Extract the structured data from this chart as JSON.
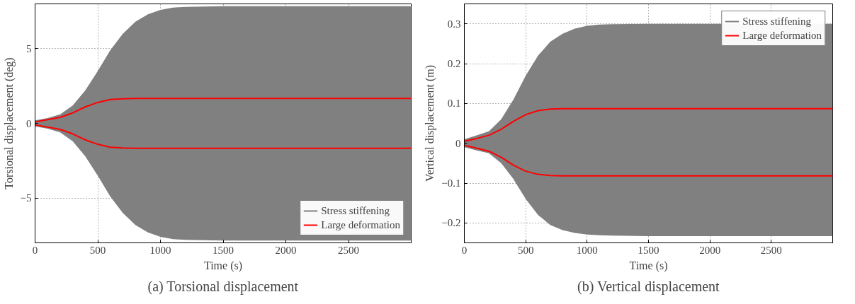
{
  "chart_data": [
    {
      "type": "line",
      "xlabel": "Time (s)",
      "ylabel": "Torsional displacement (deg)",
      "annotations": [
        "(a) Torsional displacement"
      ],
      "xlim": [
        0,
        3000
      ],
      "xticks": [
        0,
        500,
        1000,
        1500,
        2000,
        2500
      ],
      "ylim": [
        -8,
        8
      ],
      "yticks": [
        -5,
        0,
        5
      ],
      "grid": true,
      "legend": "bottom right",
      "x": [
        0,
        100,
        200,
        300,
        400,
        500,
        600,
        700,
        800,
        900,
        1000,
        1100,
        1200,
        1500,
        2000,
        2500,
        3000
      ],
      "series": [
        {
          "name": "Stress stiffening",
          "color": "#808080",
          "values": [
            null,
            null,
            null,
            null,
            null,
            null,
            null,
            null,
            null,
            null,
            null,
            null,
            null,
            null,
            null,
            null,
            null
          ],
          "upper": [
            0.2,
            0.35,
            0.6,
            1.2,
            2.2,
            3.5,
            4.9,
            6.0,
            6.8,
            7.3,
            7.6,
            7.75,
            7.8,
            7.85,
            7.85,
            7.85,
            7.85
          ],
          "lower": [
            -0.2,
            -0.35,
            -0.6,
            -1.2,
            -2.2,
            -3.5,
            -4.9,
            -6.0,
            -6.8,
            -7.3,
            -7.6,
            -7.75,
            -7.8,
            -7.85,
            -7.85,
            -7.85,
            -7.85
          ]
        },
        {
          "name": "Large deformation",
          "color": "#ff0000",
          "values": [
            0.1,
            0.25,
            0.4,
            0.7,
            1.1,
            1.4,
            1.6,
            1.65,
            1.67,
            1.67,
            1.67,
            1.67,
            1.67,
            1.67,
            1.67,
            1.67,
            1.67
          ]
        },
        {
          "color": "#ff0000",
          "values": [
            -0.1,
            -0.25,
            -0.4,
            -0.7,
            -1.1,
            -1.4,
            -1.6,
            -1.65,
            -1.67,
            -1.67,
            -1.67,
            -1.67,
            -1.67,
            -1.67,
            -1.67,
            -1.67,
            -1.67
          ]
        }
      ]
    },
    {
      "type": "line",
      "xlabel": "Time (s)",
      "ylabel": "Vertical displacement (m)",
      "annotations": [
        "(b) Vertical displacement"
      ],
      "xlim": [
        0,
        3000
      ],
      "xticks": [
        0,
        500,
        1000,
        1500,
        2000,
        2500
      ],
      "ylim": [
        -0.25,
        0.35
      ],
      "yticks": [
        -0.2,
        -0.1,
        0,
        0.1,
        0.2,
        0.3
      ],
      "grid": true,
      "legend": "top right",
      "x": [
        0,
        100,
        200,
        300,
        400,
        500,
        600,
        700,
        800,
        900,
        1000,
        1100,
        1200,
        1500,
        2000,
        3000
      ],
      "series": [
        {
          "name": "Stress stiffening",
          "color": "#808080",
          "values": [
            null,
            null,
            null,
            null,
            null,
            null,
            null,
            null,
            null,
            null,
            null,
            null,
            null,
            null,
            null,
            null
          ],
          "upper": [
            0.01,
            0.02,
            0.03,
            0.06,
            0.11,
            0.17,
            0.22,
            0.255,
            0.275,
            0.288,
            0.295,
            0.298,
            0.299,
            0.3,
            0.3,
            0.3
          ],
          "lower": [
            -0.01,
            -0.018,
            -0.025,
            -0.05,
            -0.09,
            -0.14,
            -0.18,
            -0.205,
            -0.218,
            -0.225,
            -0.229,
            -0.231,
            -0.232,
            -0.233,
            -0.233,
            -0.233
          ]
        },
        {
          "name": "Large deformation",
          "color": "#ff0000",
          "values": [
            0.005,
            0.012,
            0.02,
            0.035,
            0.055,
            0.072,
            0.082,
            0.086,
            0.087,
            0.087,
            0.087,
            0.087,
            0.087,
            0.087,
            0.087,
            0.087
          ]
        },
        {
          "color": "#ff0000",
          "values": [
            -0.005,
            -0.012,
            -0.02,
            -0.035,
            -0.055,
            -0.07,
            -0.078,
            -0.081,
            -0.082,
            -0.082,
            -0.082,
            -0.082,
            -0.082,
            -0.082,
            -0.082,
            -0.082
          ]
        }
      ]
    }
  ]
}
